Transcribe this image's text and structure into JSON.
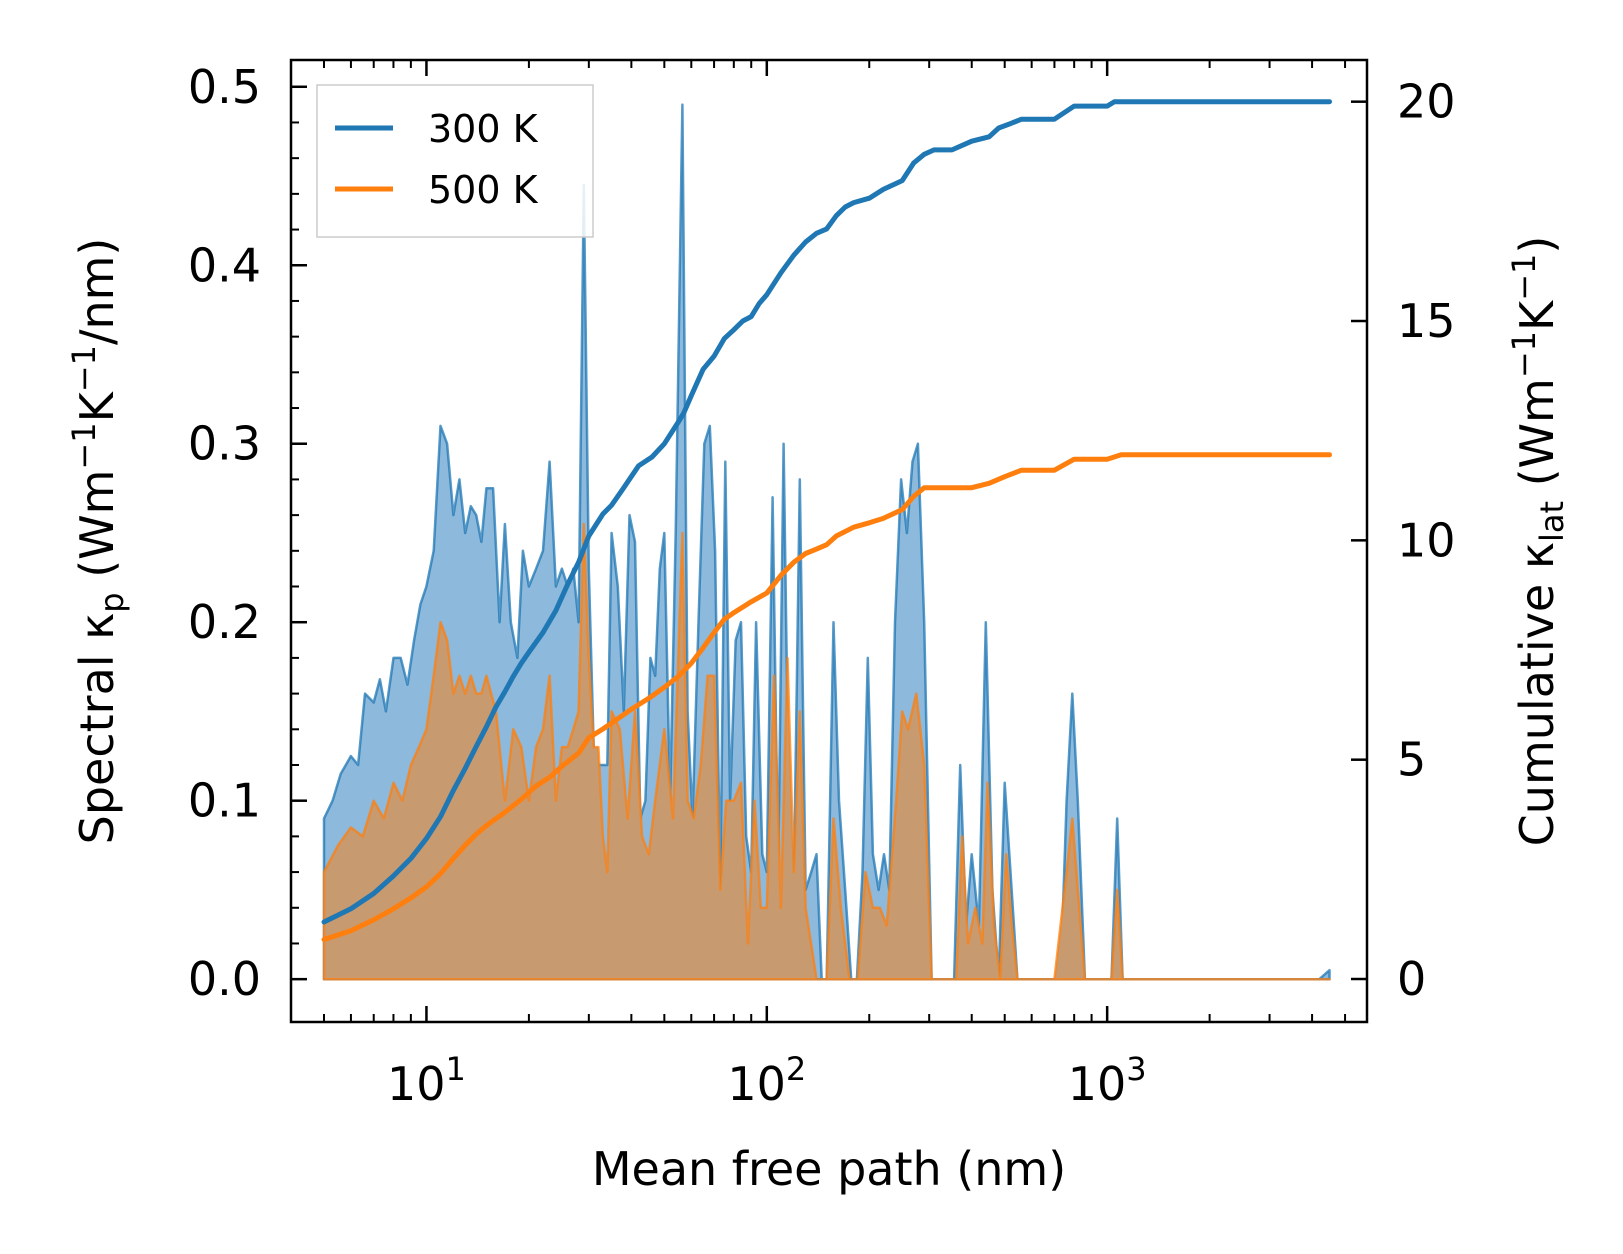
{
  "chart_data": {
    "type": "line",
    "xscale": "log",
    "xlabel": "Mean free path (nm)",
    "xlim": [
      4.0,
      5800
    ],
    "xticks": [
      {
        "value": 10,
        "base": "10",
        "exp": "1"
      },
      {
        "value": 100,
        "base": "10",
        "exp": "2"
      },
      {
        "value": 1000,
        "base": "10",
        "exp": "3"
      }
    ],
    "y_left": {
      "label_prefix": "Spectral κ",
      "label_sub": "p",
      "label_mid": " (Wm",
      "sup1": "−1",
      "k": "K",
      "sup2": "−1",
      "label_end": "/nm)",
      "ylim": [
        -0.024,
        0.515
      ],
      "ticks": [
        0.0,
        0.1,
        0.2,
        0.3,
        0.4,
        0.5
      ],
      "tick_labels": [
        "0.0",
        "0.1",
        "0.2",
        "0.3",
        "0.4",
        "0.5"
      ]
    },
    "y_right": {
      "label_prefix": "Cumulative κ",
      "label_sub": "lat",
      "label_mid": " (Wm",
      "sup1": "−1",
      "k": "K",
      "sup2": "−1",
      "label_end": ")",
      "ylim": [
        -0.98,
        20.95
      ],
      "ticks": [
        0,
        5,
        10,
        15,
        20
      ],
      "tick_labels": [
        "0",
        "5",
        "10",
        "15",
        "20"
      ]
    },
    "legend": {
      "location": "upper-left",
      "entries": [
        "300 K",
        "500 K"
      ]
    },
    "colors": {
      "s300": "#1f77b4",
      "s500": "#ff7f0e",
      "fill300": "#8cb9dc",
      "fill500": "#c89a70"
    },
    "spectral_300K": [
      [
        5.0,
        0.09
      ],
      [
        5.3,
        0.1
      ],
      [
        5.6,
        0.115
      ],
      [
        6.0,
        0.125
      ],
      [
        6.3,
        0.12
      ],
      [
        6.6,
        0.16
      ],
      [
        7.0,
        0.155
      ],
      [
        7.3,
        0.168
      ],
      [
        7.6,
        0.15
      ],
      [
        8.0,
        0.18
      ],
      [
        8.4,
        0.18
      ],
      [
        8.8,
        0.165
      ],
      [
        9.2,
        0.19
      ],
      [
        9.6,
        0.21
      ],
      [
        10.0,
        0.22
      ],
      [
        10.5,
        0.24
      ],
      [
        11.0,
        0.31
      ],
      [
        11.5,
        0.3
      ],
      [
        12.0,
        0.26
      ],
      [
        12.5,
        0.28
      ],
      [
        13.0,
        0.25
      ],
      [
        13.5,
        0.265
      ],
      [
        14.0,
        0.26
      ],
      [
        14.5,
        0.245
      ],
      [
        15.0,
        0.275
      ],
      [
        15.7,
        0.275
      ],
      [
        16.4,
        0.2
      ],
      [
        17.0,
        0.255
      ],
      [
        17.7,
        0.2
      ],
      [
        18.5,
        0.18
      ],
      [
        19.2,
        0.24
      ],
      [
        20.0,
        0.22
      ],
      [
        21.0,
        0.23
      ],
      [
        22.0,
        0.24
      ],
      [
        23.0,
        0.29
      ],
      [
        24.0,
        0.22
      ],
      [
        25.0,
        0.23
      ],
      [
        26.0,
        0.22
      ],
      [
        27.0,
        0.23
      ],
      [
        28.0,
        0.2
      ],
      [
        29.0,
        0.445
      ],
      [
        30.0,
        0.23
      ],
      [
        31.0,
        0.13
      ],
      [
        32.0,
        0.12
      ],
      [
        33.0,
        0.12
      ],
      [
        34.0,
        0.12
      ],
      [
        35.0,
        0.25
      ],
      [
        36.5,
        0.22
      ],
      [
        38.0,
        0.15
      ],
      [
        39.5,
        0.26
      ],
      [
        41.0,
        0.245
      ],
      [
        42.5,
        0.09
      ],
      [
        44.0,
        0.1
      ],
      [
        45.5,
        0.18
      ],
      [
        47.0,
        0.17
      ],
      [
        48.5,
        0.23
      ],
      [
        50.0,
        0.25
      ],
      [
        52.0,
        0.1
      ],
      [
        54.0,
        0.25
      ],
      [
        56.5,
        0.49
      ],
      [
        58.5,
        0.15
      ],
      [
        60.5,
        0.09
      ],
      [
        63.0,
        0.2
      ],
      [
        65.5,
        0.3
      ],
      [
        68.0,
        0.31
      ],
      [
        70.5,
        0.24
      ],
      [
        73.0,
        0.05
      ],
      [
        75.5,
        0.29
      ],
      [
        78.0,
        0.1
      ],
      [
        81.0,
        0.19
      ],
      [
        84.0,
        0.2
      ],
      [
        87.0,
        0.08
      ],
      [
        90.0,
        0.06
      ],
      [
        93.0,
        0.2
      ],
      [
        97.0,
        0.07
      ],
      [
        100.0,
        0.06
      ],
      [
        104.0,
        0.27
      ],
      [
        108.0,
        0.06
      ],
      [
        112.0,
        0.3
      ],
      [
        116.0,
        0.1
      ],
      [
        120.0,
        0.05
      ],
      [
        125.0,
        0.28
      ],
      [
        130.0,
        0.05
      ],
      [
        135.0,
        0.06
      ],
      [
        140.0,
        0.07
      ],
      [
        145.0,
        0.0
      ],
      [
        150.0,
        0.0
      ],
      [
        157.0,
        0.2
      ],
      [
        163.0,
        0.1
      ],
      [
        170.0,
        0.05
      ],
      [
        177.0,
        0.0
      ],
      [
        184.0,
        0.0
      ],
      [
        191.0,
        0.06
      ],
      [
        198.0,
        0.18
      ],
      [
        205.0,
        0.07
      ],
      [
        213.0,
        0.05
      ],
      [
        221.0,
        0.07
      ],
      [
        229.0,
        0.05
      ],
      [
        238.0,
        0.2
      ],
      [
        248.0,
        0.28
      ],
      [
        258.0,
        0.25
      ],
      [
        268.0,
        0.29
      ],
      [
        278.0,
        0.3
      ],
      [
        290.0,
        0.2
      ],
      [
        305.0,
        0.0
      ],
      [
        330.0,
        0.0
      ],
      [
        355.0,
        0.0
      ],
      [
        370.0,
        0.12
      ],
      [
        385.0,
        0.03
      ],
      [
        400.0,
        0.07
      ],
      [
        420.0,
        0.03
      ],
      [
        440.0,
        0.2
      ],
      [
        460.0,
        0.05
      ],
      [
        480.0,
        0.0
      ],
      [
        500.0,
        0.11
      ],
      [
        520.0,
        0.06
      ],
      [
        545.0,
        0.0
      ],
      [
        575.0,
        0.0
      ],
      [
        620.0,
        0.0
      ],
      [
        680.0,
        0.0
      ],
      [
        730.0,
        0.0
      ],
      [
        760.0,
        0.1
      ],
      [
        790.0,
        0.16
      ],
      [
        820.0,
        0.1
      ],
      [
        860.0,
        0.0
      ],
      [
        950.0,
        0.0
      ],
      [
        1030.0,
        0.0
      ],
      [
        1070.0,
        0.09
      ],
      [
        1110.0,
        0.0
      ],
      [
        1500.0,
        0.0
      ],
      [
        2500.0,
        0.0
      ],
      [
        4200.0,
        0.0
      ],
      [
        4500.0,
        0.005
      ]
    ],
    "spectral_500K": [
      [
        5.0,
        0.06
      ],
      [
        5.5,
        0.075
      ],
      [
        6.0,
        0.085
      ],
      [
        6.5,
        0.08
      ],
      [
        7.0,
        0.1
      ],
      [
        7.5,
        0.09
      ],
      [
        8.0,
        0.11
      ],
      [
        8.5,
        0.1
      ],
      [
        9.0,
        0.12
      ],
      [
        9.5,
        0.13
      ],
      [
        10.0,
        0.14
      ],
      [
        10.5,
        0.17
      ],
      [
        11.0,
        0.2
      ],
      [
        11.5,
        0.19
      ],
      [
        12.0,
        0.16
      ],
      [
        12.5,
        0.17
      ],
      [
        13.0,
        0.16
      ],
      [
        13.5,
        0.17
      ],
      [
        14.0,
        0.16
      ],
      [
        14.5,
        0.16
      ],
      [
        15.0,
        0.17
      ],
      [
        16.0,
        0.15
      ],
      [
        17.0,
        0.1
      ],
      [
        18.0,
        0.14
      ],
      [
        19.0,
        0.13
      ],
      [
        20.0,
        0.1
      ],
      [
        21.0,
        0.13
      ],
      [
        22.0,
        0.14
      ],
      [
        23.0,
        0.17
      ],
      [
        24.0,
        0.1
      ],
      [
        25.0,
        0.13
      ],
      [
        26.0,
        0.13
      ],
      [
        27.0,
        0.14
      ],
      [
        28.0,
        0.15
      ],
      [
        29.0,
        0.255
      ],
      [
        30.0,
        0.18
      ],
      [
        31.0,
        0.13
      ],
      [
        32.0,
        0.13
      ],
      [
        33.0,
        0.08
      ],
      [
        34.0,
        0.06
      ],
      [
        35.0,
        0.15
      ],
      [
        37.0,
        0.14
      ],
      [
        39.0,
        0.09
      ],
      [
        41.0,
        0.15
      ],
      [
        43.0,
        0.08
      ],
      [
        45.0,
        0.07
      ],
      [
        47.0,
        0.1
      ],
      [
        50.0,
        0.14
      ],
      [
        53.0,
        0.09
      ],
      [
        56.5,
        0.25
      ],
      [
        58.5,
        0.1
      ],
      [
        61.0,
        0.09
      ],
      [
        64.0,
        0.12
      ],
      [
        67.0,
        0.17
      ],
      [
        70.0,
        0.17
      ],
      [
        73.0,
        0.05
      ],
      [
        76.0,
        0.1
      ],
      [
        80.0,
        0.1
      ],
      [
        84.0,
        0.11
      ],
      [
        88.0,
        0.02
      ],
      [
        92.0,
        0.1
      ],
      [
        96.0,
        0.04
      ],
      [
        100.0,
        0.04
      ],
      [
        105.0,
        0.17
      ],
      [
        110.0,
        0.04
      ],
      [
        115.0,
        0.18
      ],
      [
        120.0,
        0.06
      ],
      [
        125.0,
        0.15
      ],
      [
        130.0,
        0.04
      ],
      [
        140.0,
        0.0
      ],
      [
        150.0,
        0.0
      ],
      [
        157.0,
        0.09
      ],
      [
        165.0,
        0.04
      ],
      [
        175.0,
        0.0
      ],
      [
        185.0,
        0.0
      ],
      [
        195.0,
        0.06
      ],
      [
        205.0,
        0.04
      ],
      [
        215.0,
        0.04
      ],
      [
        225.0,
        0.03
      ],
      [
        240.0,
        0.1
      ],
      [
        250.0,
        0.15
      ],
      [
        260.0,
        0.14
      ],
      [
        275.0,
        0.16
      ],
      [
        290.0,
        0.12
      ],
      [
        305.0,
        0.0
      ],
      [
        330.0,
        0.0
      ],
      [
        360.0,
        0.0
      ],
      [
        375.0,
        0.08
      ],
      [
        390.0,
        0.02
      ],
      [
        410.0,
        0.04
      ],
      [
        430.0,
        0.02
      ],
      [
        445.0,
        0.11
      ],
      [
        465.0,
        0.03
      ],
      [
        485.0,
        0.0
      ],
      [
        505.0,
        0.07
      ],
      [
        525.0,
        0.03
      ],
      [
        545.0,
        0.0
      ],
      [
        600.0,
        0.0
      ],
      [
        700.0,
        0.0
      ],
      [
        760.0,
        0.06
      ],
      [
        790.0,
        0.09
      ],
      [
        820.0,
        0.05
      ],
      [
        860.0,
        0.0
      ],
      [
        1030.0,
        0.0
      ],
      [
        1070.0,
        0.05
      ],
      [
        1110.0,
        0.0
      ],
      [
        4500.0,
        0.0
      ]
    ],
    "cumulative_300K": [
      [
        5.0,
        1.3
      ],
      [
        6.0,
        1.6
      ],
      [
        7.0,
        1.95
      ],
      [
        8.0,
        2.35
      ],
      [
        9.0,
        2.75
      ],
      [
        10.0,
        3.2
      ],
      [
        11.0,
        3.7
      ],
      [
        12.0,
        4.3
      ],
      [
        13.0,
        4.8
      ],
      [
        14.0,
        5.3
      ],
      [
        15.0,
        5.75
      ],
      [
        16.0,
        6.2
      ],
      [
        17.0,
        6.55
      ],
      [
        18.0,
        6.9
      ],
      [
        19.0,
        7.2
      ],
      [
        20.0,
        7.45
      ],
      [
        22.0,
        7.9
      ],
      [
        24.0,
        8.4
      ],
      [
        26.0,
        9.0
      ],
      [
        28.0,
        9.5
      ],
      [
        30.0,
        10.1
      ],
      [
        33.0,
        10.6
      ],
      [
        35.0,
        10.8
      ],
      [
        38.0,
        11.2
      ],
      [
        42.0,
        11.7
      ],
      [
        46.0,
        11.9
      ],
      [
        50.0,
        12.2
      ],
      [
        55.0,
        12.7
      ],
      [
        57.0,
        12.9
      ],
      [
        60.0,
        13.3
      ],
      [
        65.0,
        13.9
      ],
      [
        70.0,
        14.2
      ],
      [
        75.0,
        14.6
      ],
      [
        80.0,
        14.8
      ],
      [
        85.0,
        15.0
      ],
      [
        90.0,
        15.1
      ],
      [
        95.0,
        15.4
      ],
      [
        100.0,
        15.6
      ],
      [
        110.0,
        16.1
      ],
      [
        120.0,
        16.5
      ],
      [
        130.0,
        16.8
      ],
      [
        140.0,
        17.0
      ],
      [
        150.0,
        17.1
      ],
      [
        160.0,
        17.4
      ],
      [
        170.0,
        17.6
      ],
      [
        180.0,
        17.7
      ],
      [
        200.0,
        17.8
      ],
      [
        220.0,
        18.0
      ],
      [
        250.0,
        18.2
      ],
      [
        270.0,
        18.6
      ],
      [
        290.0,
        18.8
      ],
      [
        310.0,
        18.9
      ],
      [
        350.0,
        18.9
      ],
      [
        400.0,
        19.1
      ],
      [
        450.0,
        19.2
      ],
      [
        480.0,
        19.4
      ],
      [
        520.0,
        19.5
      ],
      [
        560.0,
        19.6
      ],
      [
        700.0,
        19.6
      ],
      [
        800.0,
        19.9
      ],
      [
        1000.0,
        19.9
      ],
      [
        1050.0,
        20.0
      ],
      [
        4500.0,
        20.0
      ]
    ],
    "cumulative_500K": [
      [
        5.0,
        0.9
      ],
      [
        6.0,
        1.1
      ],
      [
        7.0,
        1.35
      ],
      [
        8.0,
        1.6
      ],
      [
        9.0,
        1.85
      ],
      [
        10.0,
        2.1
      ],
      [
        11.0,
        2.4
      ],
      [
        12.0,
        2.75
      ],
      [
        13.0,
        3.05
      ],
      [
        14.0,
        3.3
      ],
      [
        15.0,
        3.5
      ],
      [
        17.0,
        3.8
      ],
      [
        19.0,
        4.1
      ],
      [
        21.0,
        4.4
      ],
      [
        23.0,
        4.6
      ],
      [
        25.0,
        4.85
      ],
      [
        28.0,
        5.15
      ],
      [
        30.0,
        5.5
      ],
      [
        33.0,
        5.7
      ],
      [
        36.0,
        5.9
      ],
      [
        40.0,
        6.15
      ],
      [
        45.0,
        6.4
      ],
      [
        50.0,
        6.65
      ],
      [
        55.0,
        6.9
      ],
      [
        60.0,
        7.2
      ],
      [
        65.0,
        7.55
      ],
      [
        70.0,
        7.9
      ],
      [
        75.0,
        8.2
      ],
      [
        80.0,
        8.35
      ],
      [
        90.0,
        8.6
      ],
      [
        100.0,
        8.8
      ],
      [
        110.0,
        9.2
      ],
      [
        120.0,
        9.5
      ],
      [
        130.0,
        9.7
      ],
      [
        140.0,
        9.8
      ],
      [
        150.0,
        9.9
      ],
      [
        160.0,
        10.1
      ],
      [
        180.0,
        10.3
      ],
      [
        200.0,
        10.4
      ],
      [
        220.0,
        10.5
      ],
      [
        250.0,
        10.7
      ],
      [
        270.0,
        11.0
      ],
      [
        290.0,
        11.2
      ],
      [
        400.0,
        11.2
      ],
      [
        450.0,
        11.3
      ],
      [
        500.0,
        11.45
      ],
      [
        560.0,
        11.6
      ],
      [
        700.0,
        11.6
      ],
      [
        800.0,
        11.85
      ],
      [
        1000.0,
        11.85
      ],
      [
        1100.0,
        11.95
      ],
      [
        4500.0,
        11.95
      ]
    ]
  }
}
